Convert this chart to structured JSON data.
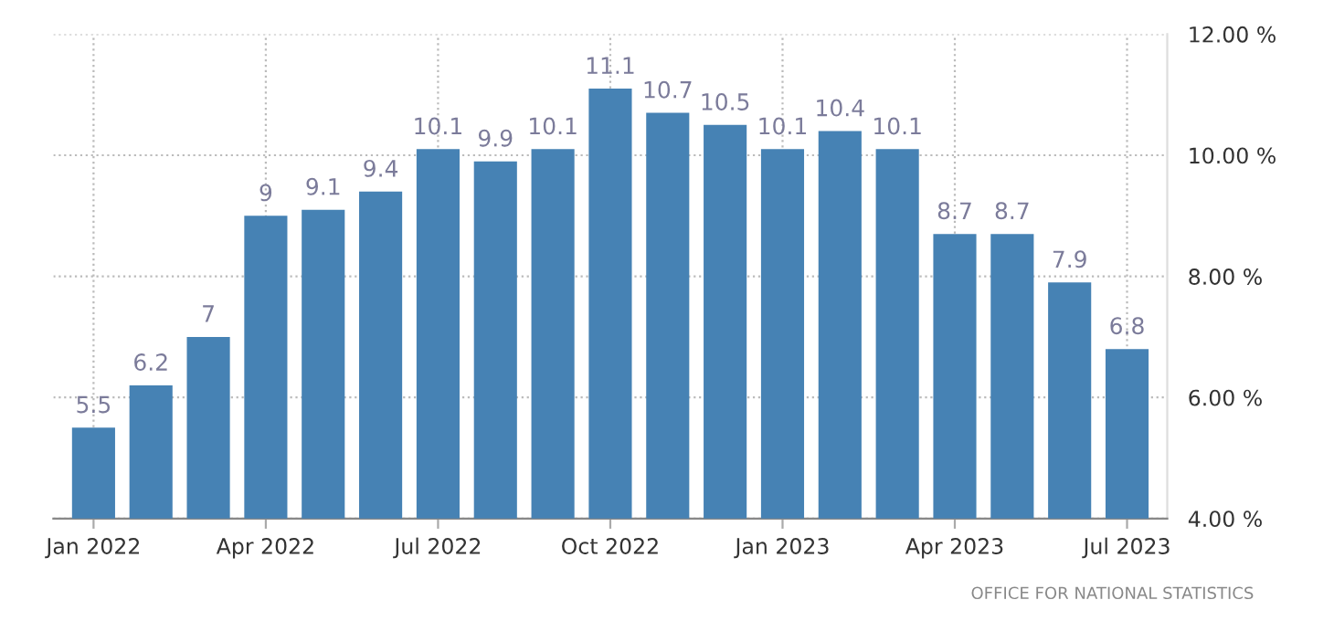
{
  "chart_data": {
    "type": "bar",
    "categories": [
      "Jan 2022",
      null,
      null,
      "Apr 2022",
      null,
      null,
      "Jul 2022",
      null,
      null,
      "Oct 2022",
      null,
      null,
      "Jan 2023",
      null,
      null,
      "Apr 2023",
      null,
      null,
      "Jul 2023"
    ],
    "values": [
      5.5,
      6.2,
      7,
      9,
      9.1,
      9.4,
      10.1,
      9.9,
      10.1,
      11.1,
      10.7,
      10.5,
      10.1,
      10.4,
      10.1,
      8.7,
      8.7,
      7.9,
      6.8
    ],
    "color": "#4682b4",
    "data_labels": true,
    "ylim": [
      4,
      12
    ],
    "yticks": [
      {
        "value": 4,
        "label": "4.00 %"
      },
      {
        "value": 6,
        "label": "6.00 %"
      },
      {
        "value": 8,
        "label": "8.00 %"
      },
      {
        "value": 10,
        "label": "10.00 %"
      },
      {
        "value": 12,
        "label": "12.00 %"
      }
    ],
    "grid": true,
    "annotations": [
      "OFFICE FOR NATIONAL STATISTICS"
    ]
  }
}
